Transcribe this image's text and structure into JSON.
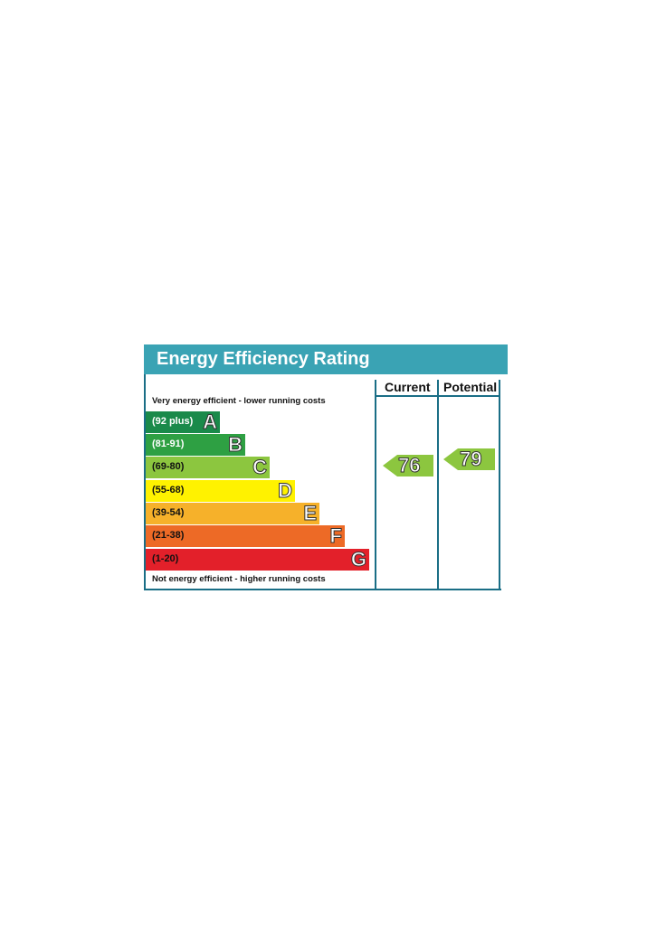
{
  "title": "Energy Efficiency Rating",
  "headers": {
    "current": "Current",
    "potential": "Potential"
  },
  "captions": {
    "top": "Very energy efficient - lower running costs",
    "bottom": "Not energy efficient - higher running costs"
  },
  "chart_data": {
    "type": "bar",
    "bands": [
      {
        "letter": "A",
        "range": "(92 plus)",
        "color": "#1a8a4a",
        "text_color": "#ffffff"
      },
      {
        "letter": "B",
        "range": "(81-91)",
        "color": "#2ea043",
        "text_color": "#ffffff"
      },
      {
        "letter": "C",
        "range": "(69-80)",
        "color": "#8cc63f",
        "text_color": "#111111"
      },
      {
        "letter": "D",
        "range": "(55-68)",
        "color": "#fff200",
        "text_color": "#111111"
      },
      {
        "letter": "E",
        "range": "(39-54)",
        "color": "#f6b12a",
        "text_color": "#111111"
      },
      {
        "letter": "F",
        "range": "(21-38)",
        "color": "#ed6a26",
        "text_color": "#111111"
      },
      {
        "letter": "G",
        "range": "(1-20)",
        "color": "#e3202a",
        "text_color": "#111111"
      }
    ],
    "current": {
      "value": "76",
      "band": "C",
      "color": "#8cc63f"
    },
    "potential": {
      "value": "79",
      "band": "C",
      "color": "#8cc63f"
    }
  }
}
